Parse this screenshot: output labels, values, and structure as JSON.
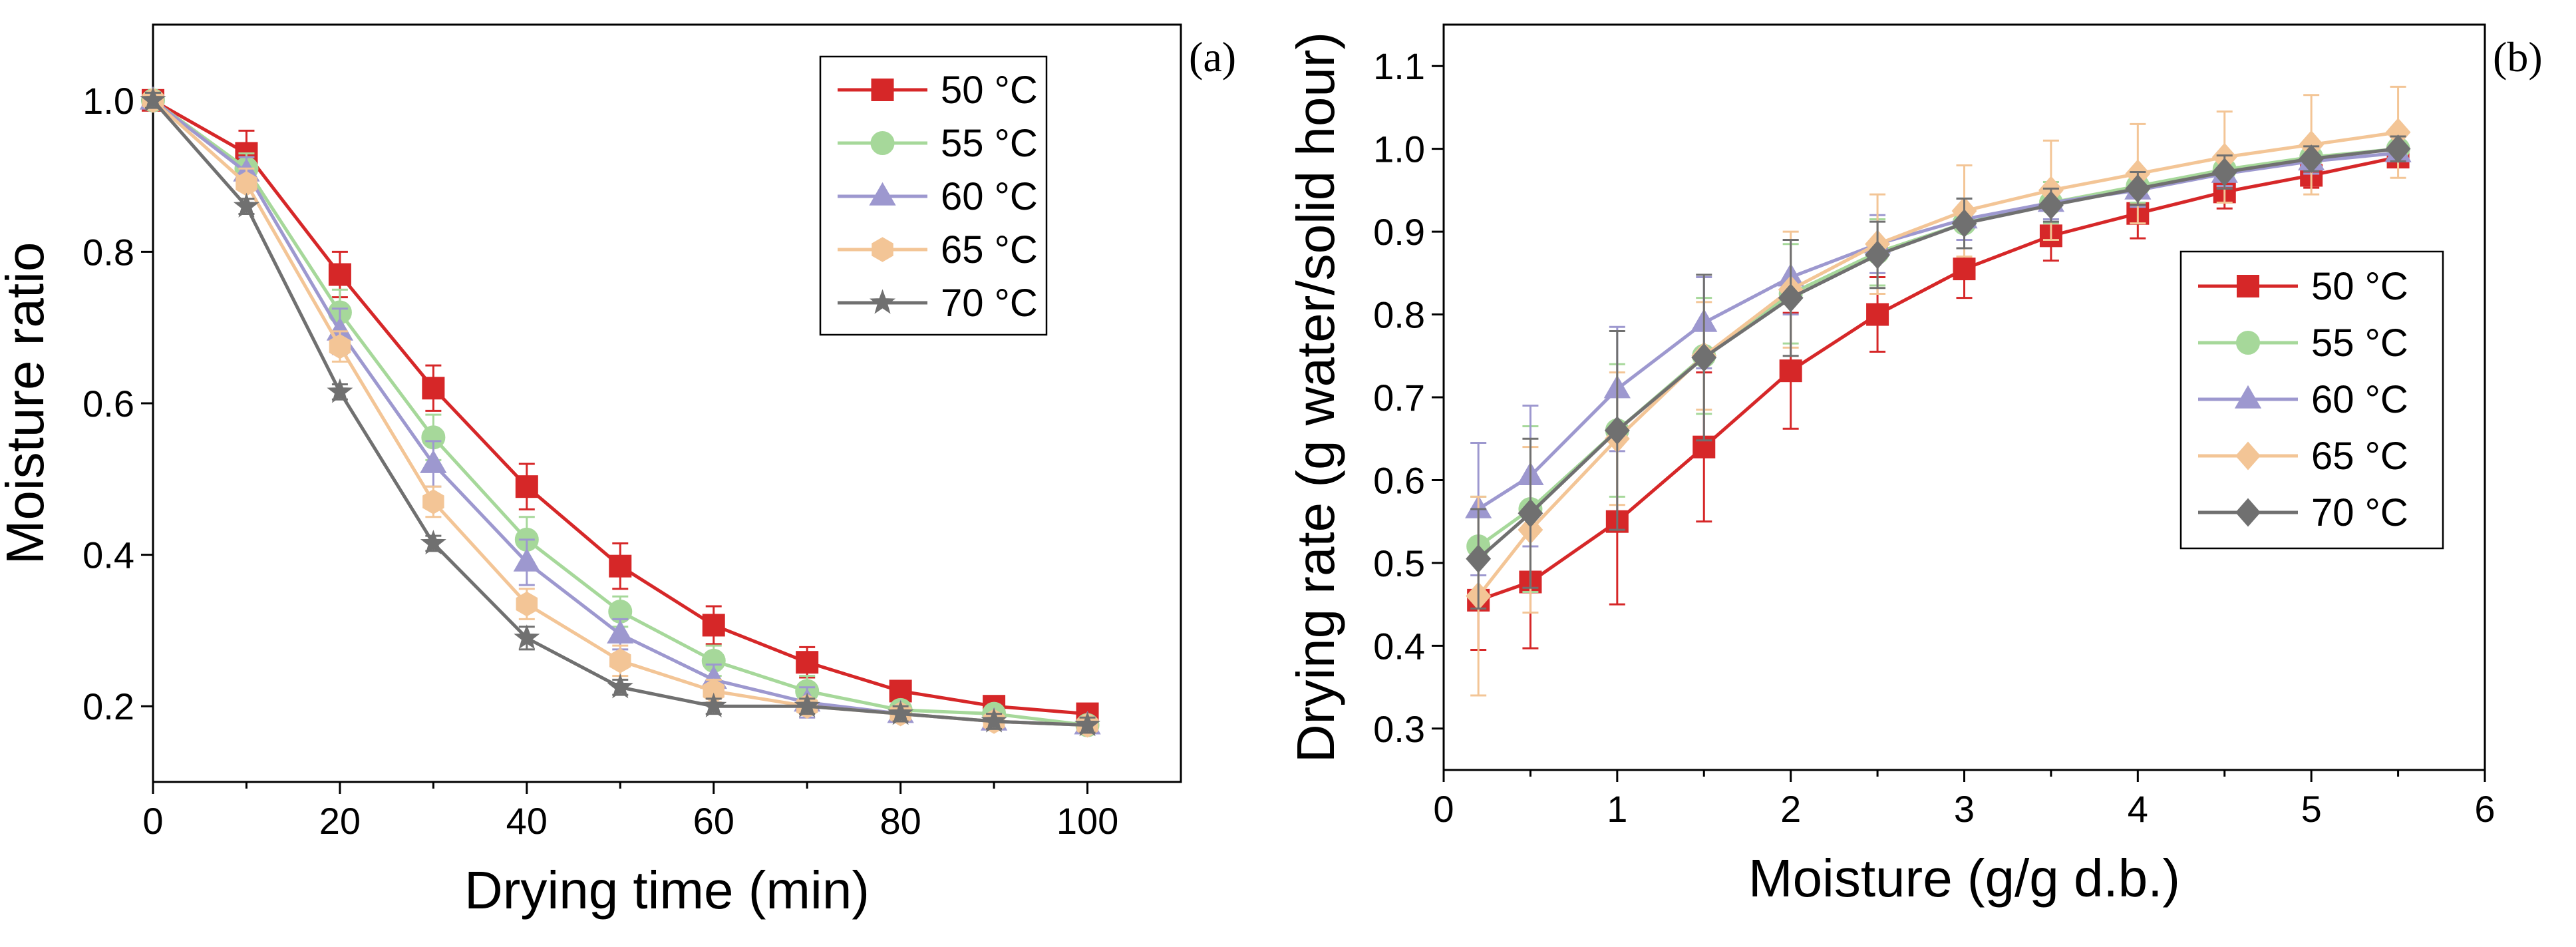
{
  "chart_data": [
    {
      "type": "line",
      "panel_label": "(a)",
      "xlabel": "Drying time (min)",
      "ylabel": "Moisture ratio",
      "xlim": [
        0,
        110
      ],
      "ylim": [
        0.1,
        1.1
      ],
      "xticks": [
        0,
        20,
        40,
        60,
        80,
        100
      ],
      "yticks": [
        0.2,
        0.4,
        0.6,
        0.8,
        1.0
      ],
      "xtick_labels": [
        "0",
        "20",
        "40",
        "60",
        "80",
        "100"
      ],
      "ytick_labels": [
        "0.2",
        "0.4",
        "0.6",
        "0.8",
        "1.0"
      ],
      "legend_position": "top-right",
      "x": [
        0,
        10,
        20,
        30,
        40,
        50,
        60,
        70,
        80,
        90,
        100
      ],
      "series": [
        {
          "name": "50 °C",
          "color": "#d62728",
          "marker": "square",
          "values": [
            1.0,
            0.93,
            0.77,
            0.62,
            0.49,
            0.385,
            0.307,
            0.258,
            0.22,
            0.2,
            0.19
          ],
          "errors": [
            0.01,
            0.03,
            0.03,
            0.03,
            0.03,
            0.03,
            0.025,
            0.02,
            0.01,
            0.01,
            0.01
          ]
        },
        {
          "name": "55 °C",
          "color": "#a6d89a",
          "marker": "circle",
          "values": [
            1.0,
            0.91,
            0.72,
            0.555,
            0.42,
            0.325,
            0.26,
            0.22,
            0.195,
            0.19,
            0.175
          ],
          "errors": [
            0.01,
            0.02,
            0.03,
            0.03,
            0.03,
            0.02,
            0.02,
            0.02,
            0.01,
            0.01,
            0.01
          ]
        },
        {
          "name": "60 °C",
          "color": "#9d98cf",
          "marker": "triangle",
          "values": [
            1.0,
            0.905,
            0.695,
            0.52,
            0.39,
            0.295,
            0.235,
            0.205,
            0.19,
            0.18,
            0.175
          ],
          "errors": [
            0.01,
            0.02,
            0.03,
            0.03,
            0.03,
            0.02,
            0.02,
            0.02,
            0.01,
            0.01,
            0.01
          ]
        },
        {
          "name": "65 °C",
          "color": "#f3c596",
          "marker": "hexagon",
          "values": [
            1.0,
            0.89,
            0.675,
            0.47,
            0.335,
            0.26,
            0.22,
            0.2,
            0.19,
            0.18,
            0.175
          ],
          "errors": [
            0.01,
            0.02,
            0.02,
            0.02,
            0.02,
            0.02,
            0.015,
            0.01,
            0.01,
            0.01,
            0.01
          ]
        },
        {
          "name": "70 °C",
          "color": "#707070",
          "marker": "star",
          "values": [
            1.0,
            0.86,
            0.615,
            0.415,
            0.29,
            0.225,
            0.2,
            0.2,
            0.19,
            0.18,
            0.175
          ],
          "errors": [
            0.01,
            0.01,
            0.01,
            0.01,
            0.015,
            0.01,
            0.01,
            0.01,
            0.01,
            0.01,
            0.01
          ]
        }
      ]
    },
    {
      "type": "line",
      "panel_label": "(b)",
      "xlabel": "Moisture (g/g d.b.)",
      "ylabel": "Drying rate (g water/solid hour)",
      "xlim": [
        0,
        6
      ],
      "ylim": [
        0.25,
        1.15
      ],
      "xticks": [
        0,
        1,
        2,
        3,
        4,
        5,
        6
      ],
      "yticks": [
        0.3,
        0.4,
        0.5,
        0.6,
        0.7,
        0.8,
        0.9,
        1.0,
        1.1
      ],
      "xtick_labels": [
        "0",
        "1",
        "2",
        "3",
        "4",
        "5",
        "6"
      ],
      "ytick_labels": [
        "0.3",
        "0.4",
        "0.5",
        "0.6",
        "0.7",
        "0.8",
        "0.9",
        "1.0",
        "1.1"
      ],
      "legend_position": "right-center",
      "x": [
        0.2,
        0.5,
        1.0,
        1.5,
        2.0,
        2.5,
        3.0,
        3.5,
        4.0,
        4.5,
        5.0,
        5.5
      ],
      "series": [
        {
          "name": "50 °C",
          "color": "#d62728",
          "marker": "square",
          "values": [
            0.455,
            0.477,
            0.55,
            0.64,
            0.732,
            0.8,
            0.855,
            0.895,
            0.922,
            0.948,
            0.968,
            0.99
          ],
          "errors": [
            0.06,
            0.08,
            0.1,
            0.09,
            0.07,
            0.045,
            0.035,
            0.03,
            0.03,
            0.02,
            0.015,
            0.01
          ]
        },
        {
          "name": "55 °C",
          "color": "#a6d89a",
          "marker": "circle",
          "values": [
            0.52,
            0.565,
            0.66,
            0.75,
            0.825,
            0.875,
            0.91,
            0.935,
            0.955,
            0.975,
            0.99,
            1.0
          ],
          "errors": [
            0.06,
            0.1,
            0.08,
            0.07,
            0.06,
            0.04,
            0.03,
            0.025,
            0.02,
            0.02,
            0.015,
            0.015
          ]
        },
        {
          "name": "60 °C",
          "color": "#9d98cf",
          "marker": "triangle",
          "values": [
            0.565,
            0.605,
            0.71,
            0.79,
            0.845,
            0.885,
            0.915,
            0.935,
            0.95,
            0.97,
            0.985,
            0.995
          ],
          "errors": [
            0.08,
            0.085,
            0.075,
            0.055,
            0.045,
            0.035,
            0.025,
            0.02,
            0.02,
            0.015,
            0.015,
            0.01
          ]
        },
        {
          "name": "65 °C",
          "color": "#f3c596",
          "marker": "diamond",
          "values": [
            0.46,
            0.54,
            0.65,
            0.75,
            0.83,
            0.885,
            0.925,
            0.95,
            0.97,
            0.99,
            1.005,
            1.02
          ],
          "errors": [
            0.12,
            0.1,
            0.08,
            0.065,
            0.07,
            0.06,
            0.055,
            0.06,
            0.06,
            0.055,
            0.06,
            0.055
          ]
        },
        {
          "name": "70 °C",
          "color": "#707070",
          "marker": "diamond",
          "values": [
            0.505,
            0.56,
            0.66,
            0.748,
            0.82,
            0.872,
            0.91,
            0.932,
            0.952,
            0.972,
            0.988,
            1.0
          ],
          "errors": [
            0.06,
            0.09,
            0.12,
            0.1,
            0.07,
            0.04,
            0.03,
            0.02,
            0.02,
            0.02,
            0.015,
            0.015
          ]
        }
      ]
    }
  ]
}
